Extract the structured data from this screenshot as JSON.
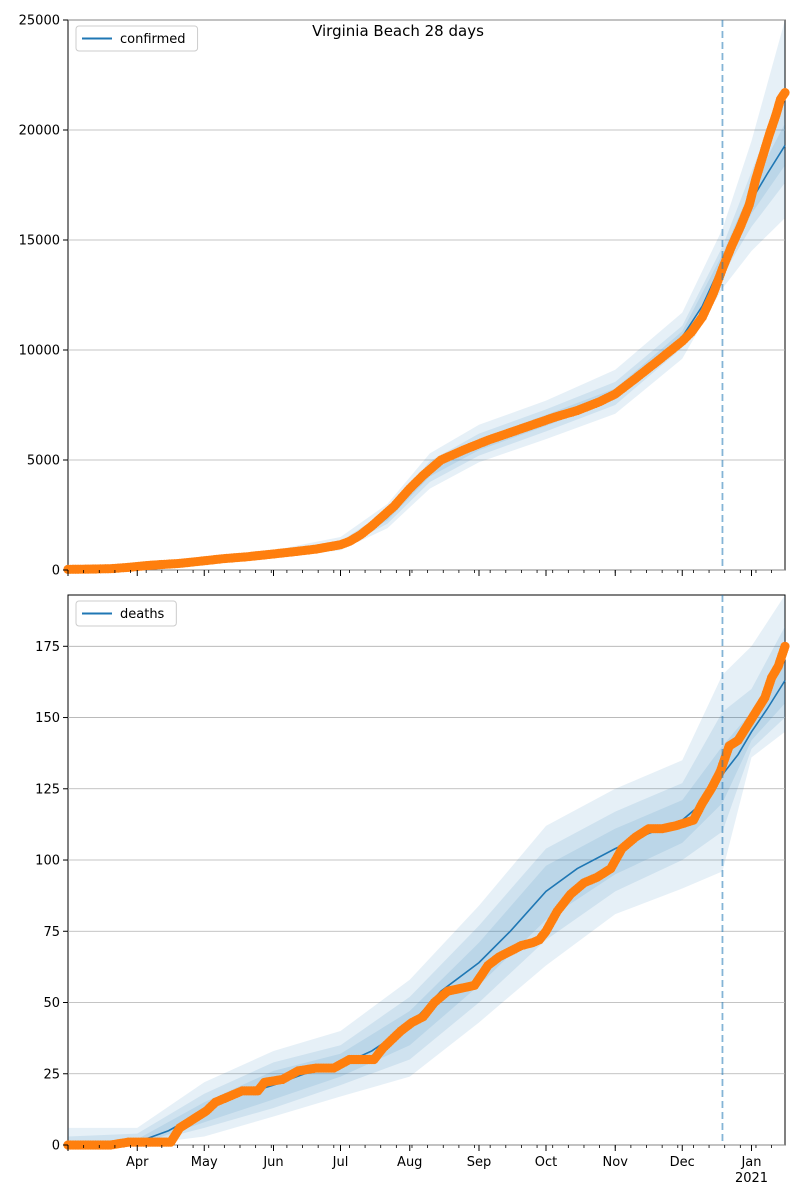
{
  "colors": {
    "model_line": "#1f77b4",
    "observed_points": "#ff7f0e",
    "band": "#1f77b4",
    "vline": "#1f77b4",
    "grid": "#b0b0b0"
  },
  "chart_data": [
    {
      "type": "line",
      "title": "Virginia Beach 28 days",
      "legend": {
        "label": "confirmed",
        "placement": "top-left"
      },
      "grid": "horizontal",
      "ylim": [
        0,
        25000
      ],
      "yticks": [
        0,
        5000,
        10000,
        15000,
        20000,
        25000
      ],
      "xticks": [],
      "vline": {
        "x": "2020-12-19"
      },
      "x_range": [
        "2020-03-01",
        "2021-01-16"
      ],
      "model_line": {
        "x": [
          "2020-03-01",
          "2020-03-20",
          "2020-04-01",
          "2020-04-15",
          "2020-05-01",
          "2020-05-15",
          "2020-06-01",
          "2020-06-15",
          "2020-07-01",
          "2020-07-08",
          "2020-07-15",
          "2020-07-22",
          "2020-08-01",
          "2020-08-10",
          "2020-08-20",
          "2020-09-01",
          "2020-09-15",
          "2020-10-01",
          "2020-10-15",
          "2020-11-01",
          "2020-11-15",
          "2020-12-01",
          "2020-12-10",
          "2020-12-19",
          "2020-12-26",
          "2021-01-01",
          "2021-01-08",
          "2021-01-16"
        ],
        "y": [
          50,
          60,
          150,
          250,
          400,
          520,
          700,
          850,
          1150,
          1350,
          1800,
          2400,
          3500,
          4500,
          5200,
          5700,
          6200,
          6800,
          7300,
          8000,
          9000,
          10600,
          12000,
          14000,
          15600,
          16800,
          18000,
          19300
        ]
      },
      "bands": {
        "x": [
          "2020-03-01",
          "2020-04-01",
          "2020-05-01",
          "2020-06-01",
          "2020-07-01",
          "2020-07-22",
          "2020-08-10",
          "2020-09-01",
          "2020-10-01",
          "2020-11-01",
          "2020-12-01",
          "2020-12-19",
          "2021-01-01",
          "2021-01-16"
        ],
        "median": [
          50,
          150,
          400,
          700,
          1150,
          2400,
          4500,
          5700,
          6800,
          8000,
          10600,
          14000,
          16800,
          19300
        ],
        "outer_lower": [
          0,
          80,
          280,
          520,
          900,
          1900,
          3700,
          4900,
          5950,
          7100,
          9600,
          12800,
          14500,
          16000
        ],
        "outer_upper": [
          150,
          280,
          560,
          900,
          1500,
          3000,
          5300,
          6600,
          7700,
          9100,
          11700,
          15500,
          19500,
          25000
        ],
        "mid_lower": [
          20,
          110,
          330,
          600,
          1000,
          2100,
          4000,
          5200,
          6300,
          7500,
          10100,
          13400,
          15600,
          17600
        ],
        "mid_upper": [
          90,
          200,
          470,
          800,
          1300,
          2700,
          4950,
          6200,
          7300,
          8550,
          11100,
          14700,
          18100,
          22000
        ],
        "inner_lower": [
          35,
          130,
          370,
          650,
          1080,
          2250,
          4250,
          5450,
          6550,
          7750,
          10350,
          13700,
          16200,
          18400
        ],
        "inner_upper": [
          70,
          175,
          430,
          750,
          1220,
          2550,
          4750,
          5950,
          7050,
          8250,
          10850,
          14350,
          17400,
          20300
        ]
      },
      "observed": {
        "x": [
          "2020-03-01",
          "2020-03-10",
          "2020-03-20",
          "2020-03-28",
          "2020-04-05",
          "2020-04-12",
          "2020-04-20",
          "2020-05-01",
          "2020-05-10",
          "2020-05-20",
          "2020-06-01",
          "2020-06-10",
          "2020-06-20",
          "2020-07-01",
          "2020-07-05",
          "2020-07-10",
          "2020-07-15",
          "2020-07-20",
          "2020-07-25",
          "2020-08-01",
          "2020-08-07",
          "2020-08-15",
          "2020-08-25",
          "2020-09-05",
          "2020-09-15",
          "2020-09-25",
          "2020-10-05",
          "2020-10-15",
          "2020-10-25",
          "2020-11-01",
          "2020-11-10",
          "2020-11-20",
          "2020-12-01",
          "2020-12-05",
          "2020-12-10",
          "2020-12-15",
          "2020-12-19",
          "2020-12-23",
          "2020-12-27",
          "2020-12-31",
          "2021-01-03",
          "2021-01-06",
          "2021-01-09",
          "2021-01-12",
          "2021-01-14",
          "2021-01-16"
        ],
        "y": [
          30,
          40,
          60,
          120,
          200,
          250,
          300,
          420,
          520,
          600,
          730,
          830,
          950,
          1150,
          1300,
          1600,
          2000,
          2450,
          2900,
          3700,
          4300,
          5000,
          5450,
          5900,
          6250,
          6600,
          6950,
          7250,
          7650,
          8000,
          8700,
          9500,
          10400,
          10800,
          11500,
          12600,
          13700,
          14700,
          15600,
          16600,
          17800,
          18800,
          19800,
          20700,
          21400,
          21700
        ]
      }
    },
    {
      "type": "line",
      "title": "",
      "legend": {
        "label": "deaths",
        "placement": "top-left"
      },
      "grid": "horizontal",
      "ylim": [
        0,
        193
      ],
      "yticks": [
        0,
        25,
        50,
        75,
        100,
        125,
        150,
        175
      ],
      "xticks": [
        "Apr",
        "May",
        "Jun",
        "Jul",
        "Aug",
        "Sep",
        "Oct",
        "Nov",
        "Dec",
        "Jan\n2021"
      ],
      "xtick_dates": [
        "2020-04-01",
        "2020-05-01",
        "2020-06-01",
        "2020-07-01",
        "2020-08-01",
        "2020-09-01",
        "2020-10-01",
        "2020-11-01",
        "2020-12-01",
        "2021-01-01"
      ],
      "vline": {
        "x": "2020-12-19"
      },
      "x_range": [
        "2020-03-01",
        "2021-01-16"
      ],
      "model_line": {
        "x": [
          "2020-03-01",
          "2020-03-25",
          "2020-04-01",
          "2020-04-15",
          "2020-05-01",
          "2020-05-15",
          "2020-06-01",
          "2020-06-15",
          "2020-07-01",
          "2020-07-15",
          "2020-08-01",
          "2020-08-15",
          "2020-09-01",
          "2020-09-15",
          "2020-10-01",
          "2020-10-15",
          "2020-11-01",
          "2020-11-15",
          "2020-12-01",
          "2020-12-10",
          "2020-12-19",
          "2020-12-26",
          "2021-01-01",
          "2021-01-08",
          "2021-01-16"
        ],
        "y": [
          0,
          0,
          1,
          5,
          12,
          17,
          21,
          25,
          28,
          33,
          42,
          54,
          64,
          75,
          89,
          97,
          104,
          109,
          114,
          120,
          130,
          137,
          145,
          153,
          163
        ]
      },
      "bands": {
        "x": [
          "2020-03-01",
          "2020-04-01",
          "2020-05-01",
          "2020-06-01",
          "2020-07-01",
          "2020-08-01",
          "2020-09-01",
          "2020-10-01",
          "2020-11-01",
          "2020-12-01",
          "2020-12-19",
          "2021-01-01",
          "2021-01-16"
        ],
        "median": [
          0,
          1,
          12,
          21,
          28,
          42,
          64,
          89,
          104,
          114,
          130,
          145,
          163
        ],
        "outer_lower": [
          0,
          0,
          3,
          10,
          17,
          24,
          43,
          63,
          81,
          90,
          96,
          136,
          145
        ],
        "outer_upper": [
          6,
          6,
          22,
          33,
          40,
          58,
          84,
          112,
          125,
          135,
          165,
          175,
          193
        ],
        "mid_lower": [
          0,
          0,
          6,
          13,
          21,
          30,
          50,
          72,
          89,
          100,
          110,
          139,
          150
        ],
        "mid_upper": [
          3,
          4,
          18,
          29,
          35,
          52,
          77,
          104,
          117,
          127,
          152,
          160,
          182
        ],
        "inner_lower": [
          0,
          0,
          8,
          16,
          24,
          35,
          56,
          79,
          95,
          106,
          120,
          142,
          155
        ],
        "inner_upper": [
          1,
          2,
          15,
          26,
          32,
          47,
          71,
          98,
          111,
          121,
          140,
          152,
          172
        ]
      },
      "observed": {
        "x": [
          "2020-03-01",
          "2020-03-10",
          "2020-03-20",
          "2020-03-28",
          "2020-04-05",
          "2020-04-12",
          "2020-04-16",
          "2020-04-20",
          "2020-04-24",
          "2020-04-28",
          "2020-05-02",
          "2020-05-06",
          "2020-05-12",
          "2020-05-18",
          "2020-05-25",
          "2020-05-28",
          "2020-06-05",
          "2020-06-12",
          "2020-06-20",
          "2020-06-28",
          "2020-07-05",
          "2020-07-12",
          "2020-07-16",
          "2020-07-20",
          "2020-07-24",
          "2020-07-28",
          "2020-08-02",
          "2020-08-07",
          "2020-08-12",
          "2020-08-18",
          "2020-08-24",
          "2020-08-30",
          "2020-09-05",
          "2020-09-10",
          "2020-09-15",
          "2020-09-20",
          "2020-09-25",
          "2020-09-28",
          "2020-10-01",
          "2020-10-06",
          "2020-10-12",
          "2020-10-18",
          "2020-10-24",
          "2020-10-30",
          "2020-11-04",
          "2020-11-10",
          "2020-11-16",
          "2020-11-22",
          "2020-11-28",
          "2020-12-02",
          "2020-12-06",
          "2020-12-10",
          "2020-12-14",
          "2020-12-18",
          "2020-12-22",
          "2020-12-26",
          "2020-12-30",
          "2021-01-03",
          "2021-01-07",
          "2021-01-10",
          "2021-01-13",
          "2021-01-16"
        ],
        "y": [
          0,
          0,
          0,
          1,
          1,
          1,
          1,
          6,
          8,
          10,
          12,
          15,
          17,
          19,
          19,
          22,
          23,
          26,
          27,
          27,
          30,
          30,
          30,
          34,
          37,
          40,
          43,
          45,
          50,
          54,
          55,
          56,
          63,
          66,
          68,
          70,
          71,
          72,
          75,
          82,
          88,
          92,
          94,
          97,
          104,
          108,
          111,
          111,
          112,
          113,
          114,
          120,
          125,
          131,
          140,
          142,
          147,
          152,
          157,
          164,
          168,
          175
        ]
      }
    }
  ]
}
